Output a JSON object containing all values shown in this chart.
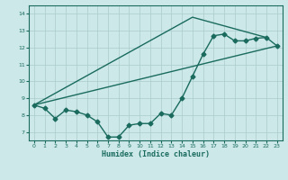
{
  "xlabel": "Humidex (Indice chaleur)",
  "ylabel": "",
  "xlim": [
    -0.5,
    23.5
  ],
  "ylim": [
    6.5,
    14.5
  ],
  "yticks": [
    7,
    8,
    9,
    10,
    11,
    12,
    13,
    14
  ],
  "xticks": [
    0,
    1,
    2,
    3,
    4,
    5,
    6,
    7,
    8,
    9,
    10,
    11,
    12,
    13,
    14,
    15,
    16,
    17,
    18,
    19,
    20,
    21,
    22,
    23
  ],
  "background_color": "#cce8e8",
  "grid_color": "#aacccc",
  "line_color": "#1a6b5e",
  "line1": {
    "x": [
      0,
      1,
      2,
      3,
      4,
      5,
      6,
      7,
      8,
      9,
      10,
      11,
      12,
      13,
      14,
      15,
      16,
      17,
      18,
      19,
      20,
      21,
      22,
      23
    ],
    "y": [
      8.6,
      8.4,
      7.8,
      8.3,
      8.2,
      8.0,
      7.6,
      6.7,
      6.7,
      7.4,
      7.5,
      7.5,
      8.1,
      8.0,
      9.0,
      10.3,
      11.6,
      12.7,
      12.8,
      12.4,
      12.4,
      12.55,
      12.6,
      12.1
    ]
  },
  "line2": {
    "x": [
      0,
      23
    ],
    "y": [
      8.6,
      12.1
    ]
  },
  "line3": {
    "x": [
      0,
      15,
      22
    ],
    "y": [
      8.6,
      13.8,
      12.6
    ]
  },
  "marker": "D",
  "markersize": 2.5,
  "linewidth": 1.0
}
